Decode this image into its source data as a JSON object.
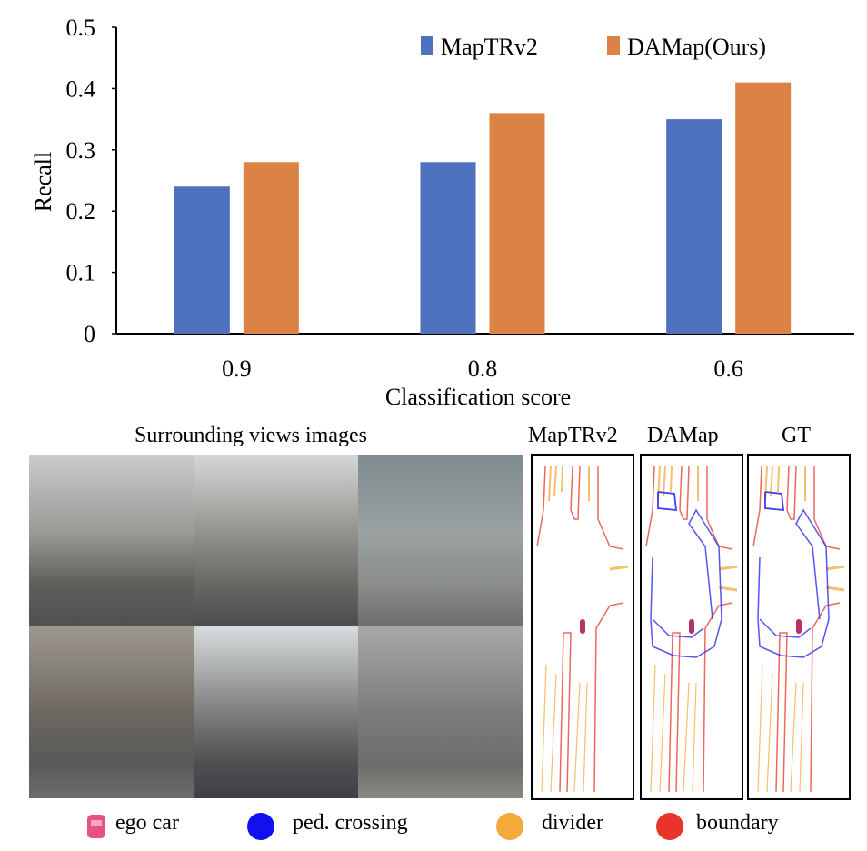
{
  "chart_data": {
    "type": "bar",
    "categories": [
      "0.9",
      "0.8",
      "0.6"
    ],
    "series": [
      {
        "name": "MapTRv2",
        "values": [
          0.24,
          0.28,
          0.35
        ],
        "color": "#4F72BE"
      },
      {
        "name": "DAMap(Ours)",
        "values": [
          0.28,
          0.36,
          0.41
        ],
        "color": "#DD8245"
      }
    ],
    "xlabel": "Classification score",
    "ylabel": "Recall",
    "ylim": [
      0,
      0.5
    ],
    "yticks": [
      "0",
      "0.1",
      "0.2",
      "0.3",
      "0.4",
      "0.5"
    ],
    "grid": false,
    "legend": "top-right"
  },
  "figure": {
    "images_title": "Surrounding views images",
    "panel_titles": [
      "MapTRv2",
      "DAMap",
      "GT"
    ],
    "legend": [
      {
        "label": "ego car",
        "color": "#E8517F",
        "icon": "car-icon"
      },
      {
        "label": "ped. crossing",
        "color": "#1010F0",
        "icon": "circle-icon"
      },
      {
        "label": "divider",
        "color": "#F2AA3A",
        "icon": "circle-icon"
      },
      {
        "label": "boundary",
        "color": "#E8342A",
        "icon": "circle-icon"
      }
    ]
  }
}
